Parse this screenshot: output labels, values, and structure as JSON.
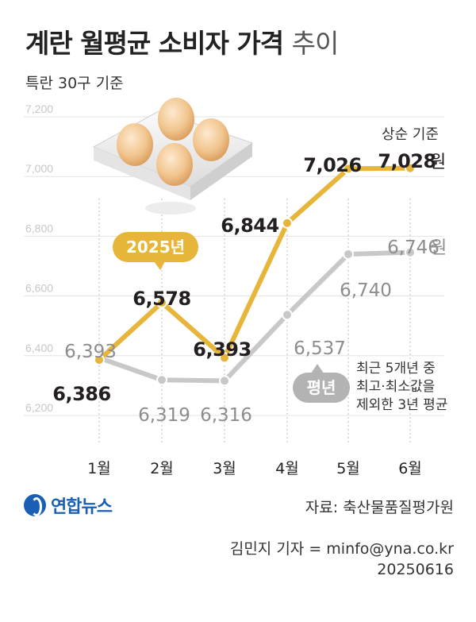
{
  "title": "계란 월평균 소비자 가격",
  "title_suffix": "추이",
  "subtitle": "특란 30구 기준",
  "chart_data": {
    "type": "line",
    "categories": [
      "1월",
      "2월",
      "3월",
      "4월",
      "5월",
      "6월"
    ],
    "ylim": [
      6100,
      7300
    ],
    "yticks": [
      6200,
      6400,
      6600,
      6800,
      7000,
      7200
    ],
    "ytick_labels": [
      "6,200",
      "6,400",
      "6,600",
      "6,800",
      "7,000",
      "7,200"
    ],
    "grid": true,
    "series": [
      {
        "name": "2025년",
        "color": "#e6b53a",
        "values": [
          6386,
          6578,
          6393,
          6844,
          7026,
          7028
        ],
        "labels": [
          "6,386",
          "6,578",
          "6,393",
          "6,844",
          "7,026",
          "7,028"
        ]
      },
      {
        "name": "평년",
        "color": "#c8c8c8",
        "values": [
          6393,
          6319,
          6316,
          6537,
          6740,
          6746
        ],
        "labels": [
          "6,393",
          "6,319",
          "6,316",
          "6,537",
          "6,740",
          "6,746"
        ]
      }
    ],
    "last_point_unit": "원",
    "last_point_note": "상순 기준",
    "normal_note": [
      "최근 5개년 중",
      "최고·최소값을",
      "제외한 3년 평균"
    ]
  },
  "footer": {
    "logo": "연합뉴스",
    "source": "자료: 축산물품질평가원",
    "credit": "김민지 기자 = minfo@yna.co.kr",
    "date": "20250616"
  }
}
